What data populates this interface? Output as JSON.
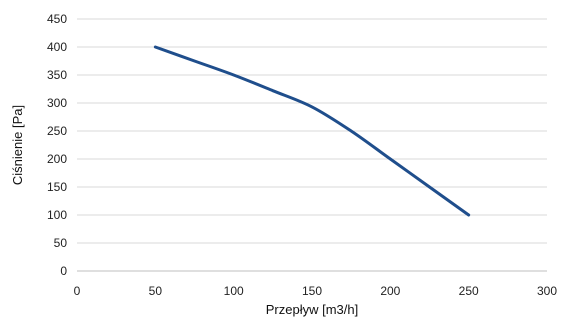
{
  "chart_data": {
    "type": "line",
    "title": "",
    "xlabel": "Przepływ [m3/h]",
    "ylabel": "Ciśnienie [Pa]",
    "xlim": [
      0,
      300
    ],
    "ylim": [
      0,
      450
    ],
    "x_ticks": [
      "0",
      "50",
      "100",
      "150",
      "200",
      "250",
      "300"
    ],
    "y_ticks": [
      "0",
      "50",
      "100",
      "150",
      "200",
      "250",
      "300",
      "350",
      "400",
      "450"
    ],
    "grid": "horizontal",
    "legend": "none",
    "series": [
      {
        "color": "#1f4e8c",
        "x": [
          50,
          75,
          100,
          125,
          150,
          175,
          200,
          225,
          250
        ],
        "y": [
          400,
          375,
          350,
          322,
          293,
          250,
          200,
          150,
          100
        ]
      }
    ]
  }
}
